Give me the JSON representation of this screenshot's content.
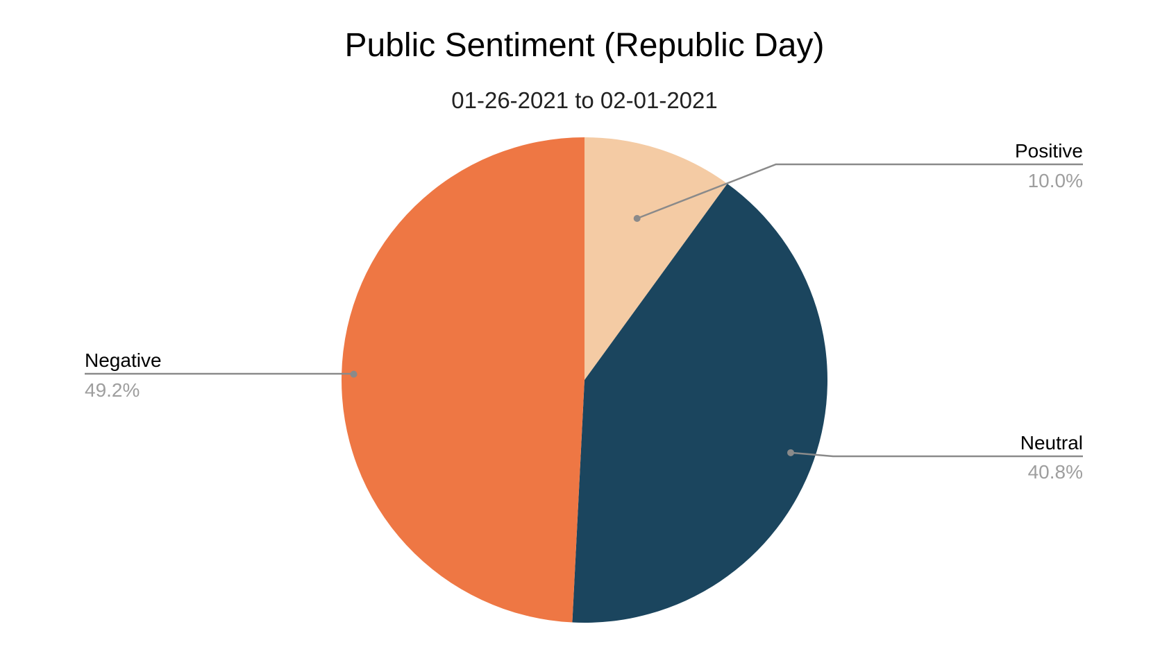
{
  "chart_data": {
    "type": "pie",
    "title": "Public Sentiment (Republic Day)",
    "subtitle": "01-26-2021 to 02-01-2021",
    "slices": [
      {
        "label": "Positive",
        "value": 10.0,
        "percent_label": "10.0%",
        "color": "#f4cba4"
      },
      {
        "label": "Neutral",
        "value": 40.8,
        "percent_label": "40.8%",
        "color": "#1b455e"
      },
      {
        "label": "Negative",
        "value": 49.2,
        "percent_label": "49.2%",
        "color": "#ee7744"
      }
    ],
    "start_angle": "12 o'clock",
    "direction": "clockwise",
    "legend": "none",
    "label_style": "callout lines with name and percentage"
  }
}
